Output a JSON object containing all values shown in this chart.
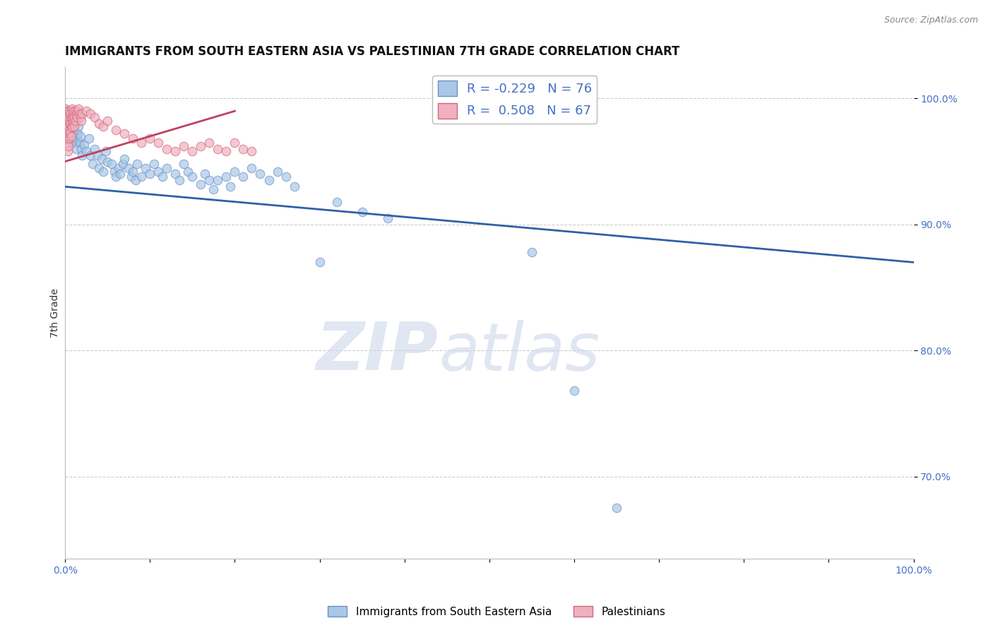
{
  "title": "IMMIGRANTS FROM SOUTH EASTERN ASIA VS PALESTINIAN 7TH GRADE CORRELATION CHART",
  "source_text": "Source: ZipAtlas.com",
  "ylabel": "7th Grade",
  "xlim": [
    0.0,
    1.0
  ],
  "ylim": [
    0.635,
    1.025
  ],
  "yticks": [
    0.7,
    0.8,
    0.9,
    1.0
  ],
  "ytick_labels": [
    "70.0%",
    "80.0%",
    "90.0%",
    "100.0%"
  ],
  "xticks": [
    0.0,
    0.1,
    0.2,
    0.3,
    0.4,
    0.5,
    0.6,
    0.7,
    0.8,
    0.9,
    1.0
  ],
  "xtick_labels": [
    "0.0%",
    "",
    "",
    "",
    "",
    "",
    "",
    "",
    "",
    "",
    "100.0%"
  ],
  "blue_color": "#a8c8e8",
  "pink_color": "#f0b0c0",
  "blue_edge_color": "#7090c0",
  "pink_edge_color": "#d06878",
  "blue_line_color": "#3060a8",
  "pink_line_color": "#c04060",
  "legend_R_blue": "R = -0.229",
  "legend_N_blue": "N = 76",
  "legend_R_pink": "R =  0.508",
  "legend_N_pink": "N = 67",
  "legend_label_blue": "Immigrants from South Eastern Asia",
  "legend_label_pink": "Palestinians",
  "watermark_zip": "ZIP",
  "watermark_atlas": "atlas",
  "blue_trend_x0": 0.0,
  "blue_trend_x1": 1.0,
  "blue_trend_y0": 0.93,
  "blue_trend_y1": 0.87,
  "pink_trend_x0": 0.0,
  "pink_trend_x1": 0.2,
  "pink_trend_y0": 0.95,
  "pink_trend_y1": 0.99,
  "blue_dots": [
    [
      0.002,
      0.99
    ],
    [
      0.003,
      0.985
    ],
    [
      0.004,
      0.982
    ],
    [
      0.005,
      0.978
    ],
    [
      0.006,
      0.975
    ],
    [
      0.007,
      0.972
    ],
    [
      0.008,
      0.968
    ],
    [
      0.009,
      0.965
    ],
    [
      0.01,
      0.975
    ],
    [
      0.011,
      0.97
    ],
    [
      0.012,
      0.965
    ],
    [
      0.013,
      0.96
    ],
    [
      0.014,
      0.968
    ],
    [
      0.015,
      0.972
    ],
    [
      0.016,
      0.978
    ],
    [
      0.017,
      0.965
    ],
    [
      0.018,
      0.97
    ],
    [
      0.019,
      0.96
    ],
    [
      0.02,
      0.955
    ],
    [
      0.022,
      0.963
    ],
    [
      0.025,
      0.958
    ],
    [
      0.028,
      0.968
    ],
    [
      0.03,
      0.955
    ],
    [
      0.032,
      0.948
    ],
    [
      0.035,
      0.96
    ],
    [
      0.038,
      0.955
    ],
    [
      0.04,
      0.945
    ],
    [
      0.043,
      0.952
    ],
    [
      0.045,
      0.942
    ],
    [
      0.048,
      0.958
    ],
    [
      0.05,
      0.95
    ],
    [
      0.055,
      0.948
    ],
    [
      0.058,
      0.942
    ],
    [
      0.06,
      0.938
    ],
    [
      0.063,
      0.945
    ],
    [
      0.065,
      0.94
    ],
    [
      0.068,
      0.948
    ],
    [
      0.07,
      0.952
    ],
    [
      0.075,
      0.945
    ],
    [
      0.078,
      0.938
    ],
    [
      0.08,
      0.942
    ],
    [
      0.083,
      0.935
    ],
    [
      0.085,
      0.948
    ],
    [
      0.09,
      0.938
    ],
    [
      0.095,
      0.945
    ],
    [
      0.1,
      0.94
    ],
    [
      0.105,
      0.948
    ],
    [
      0.11,
      0.942
    ],
    [
      0.115,
      0.938
    ],
    [
      0.12,
      0.945
    ],
    [
      0.13,
      0.94
    ],
    [
      0.135,
      0.935
    ],
    [
      0.14,
      0.948
    ],
    [
      0.145,
      0.942
    ],
    [
      0.15,
      0.938
    ],
    [
      0.16,
      0.932
    ],
    [
      0.165,
      0.94
    ],
    [
      0.17,
      0.935
    ],
    [
      0.175,
      0.928
    ],
    [
      0.18,
      0.935
    ],
    [
      0.19,
      0.938
    ],
    [
      0.195,
      0.93
    ],
    [
      0.2,
      0.942
    ],
    [
      0.21,
      0.938
    ],
    [
      0.22,
      0.945
    ],
    [
      0.23,
      0.94
    ],
    [
      0.24,
      0.935
    ],
    [
      0.25,
      0.942
    ],
    [
      0.26,
      0.938
    ],
    [
      0.27,
      0.93
    ],
    [
      0.3,
      0.87
    ],
    [
      0.32,
      0.918
    ],
    [
      0.35,
      0.91
    ],
    [
      0.38,
      0.905
    ],
    [
      0.55,
      0.878
    ],
    [
      0.6,
      0.768
    ],
    [
      0.65,
      0.675
    ]
  ],
  "pink_dots": [
    [
      0.001,
      0.992
    ],
    [
      0.001,
      0.985
    ],
    [
      0.002,
      0.99
    ],
    [
      0.002,
      0.982
    ],
    [
      0.002,
      0.975
    ],
    [
      0.002,
      0.968
    ],
    [
      0.003,
      0.988
    ],
    [
      0.003,
      0.98
    ],
    [
      0.003,
      0.973
    ],
    [
      0.003,
      0.965
    ],
    [
      0.003,
      0.958
    ],
    [
      0.004,
      0.985
    ],
    [
      0.004,
      0.978
    ],
    [
      0.004,
      0.97
    ],
    [
      0.004,
      0.962
    ],
    [
      0.005,
      0.99
    ],
    [
      0.005,
      0.983
    ],
    [
      0.005,
      0.975
    ],
    [
      0.005,
      0.968
    ],
    [
      0.006,
      0.988
    ],
    [
      0.006,
      0.98
    ],
    [
      0.006,
      0.973
    ],
    [
      0.007,
      0.985
    ],
    [
      0.007,
      0.978
    ],
    [
      0.007,
      0.97
    ],
    [
      0.008,
      0.992
    ],
    [
      0.008,
      0.984
    ],
    [
      0.008,
      0.977
    ],
    [
      0.009,
      0.988
    ],
    [
      0.009,
      0.981
    ],
    [
      0.01,
      0.99
    ],
    [
      0.01,
      0.983
    ],
    [
      0.011,
      0.985
    ],
    [
      0.011,
      0.978
    ],
    [
      0.012,
      0.99
    ],
    [
      0.012,
      0.982
    ],
    [
      0.013,
      0.988
    ],
    [
      0.014,
      0.985
    ],
    [
      0.015,
      0.99
    ],
    [
      0.016,
      0.992
    ],
    [
      0.017,
      0.988
    ],
    [
      0.018,
      0.985
    ],
    [
      0.019,
      0.982
    ],
    [
      0.02,
      0.988
    ],
    [
      0.025,
      0.99
    ],
    [
      0.03,
      0.988
    ],
    [
      0.035,
      0.985
    ],
    [
      0.04,
      0.98
    ],
    [
      0.045,
      0.978
    ],
    [
      0.05,
      0.982
    ],
    [
      0.06,
      0.975
    ],
    [
      0.07,
      0.972
    ],
    [
      0.08,
      0.968
    ],
    [
      0.09,
      0.965
    ],
    [
      0.1,
      0.968
    ],
    [
      0.11,
      0.965
    ],
    [
      0.12,
      0.96
    ],
    [
      0.13,
      0.958
    ],
    [
      0.14,
      0.962
    ],
    [
      0.15,
      0.958
    ],
    [
      0.16,
      0.962
    ],
    [
      0.17,
      0.965
    ],
    [
      0.18,
      0.96
    ],
    [
      0.19,
      0.958
    ],
    [
      0.2,
      0.965
    ],
    [
      0.21,
      0.96
    ],
    [
      0.22,
      0.958
    ]
  ],
  "title_fontsize": 12,
  "axis_fontsize": 10,
  "tick_fontsize": 10,
  "marker_size": 80
}
